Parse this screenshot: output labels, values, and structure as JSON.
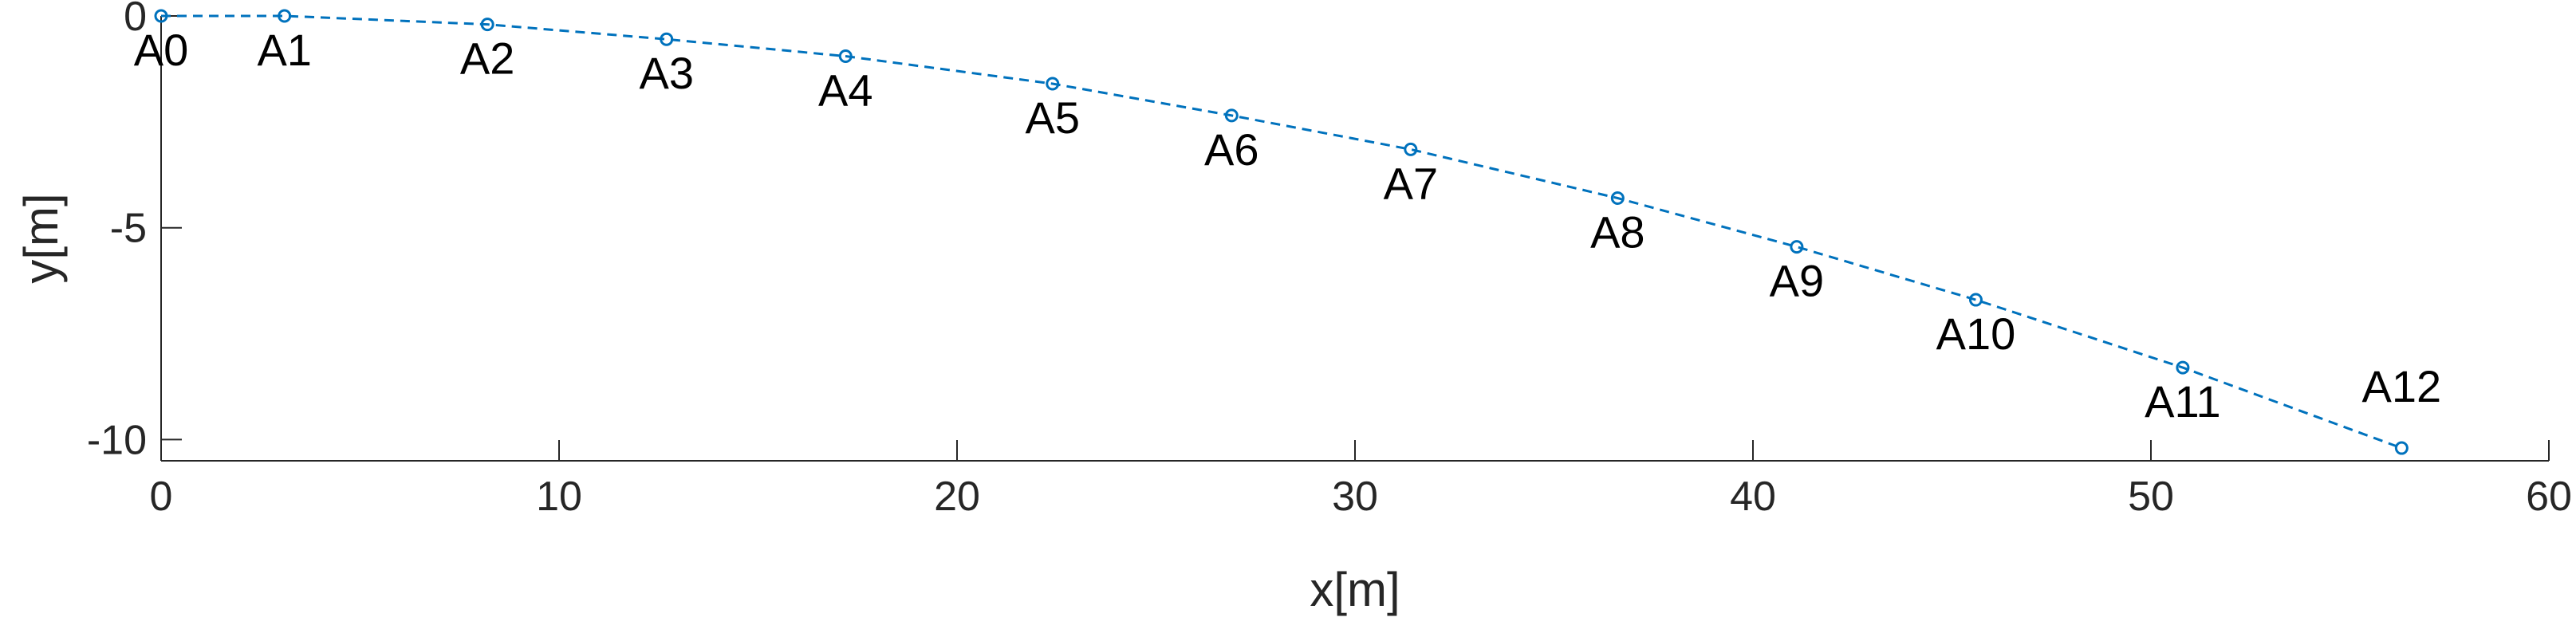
{
  "chart_data": {
    "type": "line",
    "title": "",
    "xlabel": "x[m]",
    "ylabel": "y[m]",
    "xlim": [
      0,
      60
    ],
    "ylim": [
      -10.5,
      0
    ],
    "xticks": [
      0,
      10,
      20,
      30,
      40,
      50,
      60
    ],
    "yticks": [
      0,
      -5,
      -10
    ],
    "grid": false,
    "line_style": "dashed",
    "marker": "circle",
    "series_color": "#0072BD",
    "points": [
      {
        "label": "A0",
        "x": 0.0,
        "y": 0.0
      },
      {
        "label": "A1",
        "x": 3.1,
        "y": 0.0
      },
      {
        "label": "A2",
        "x": 8.2,
        "y": -0.2
      },
      {
        "label": "A3",
        "x": 12.7,
        "y": -0.55
      },
      {
        "label": "A4",
        "x": 17.2,
        "y": -0.95
      },
      {
        "label": "A5",
        "x": 22.4,
        "y": -1.6
      },
      {
        "label": "A6",
        "x": 26.9,
        "y": -2.35
      },
      {
        "label": "A7",
        "x": 31.4,
        "y": -3.15
      },
      {
        "label": "A8",
        "x": 36.6,
        "y": -4.3
      },
      {
        "label": "A9",
        "x": 41.1,
        "y": -5.45
      },
      {
        "label": "A10",
        "x": 45.6,
        "y": -6.7
      },
      {
        "label": "A11",
        "x": 50.8,
        "y": -8.3
      },
      {
        "label": "A12",
        "x": 56.3,
        "y": -10.2
      }
    ]
  }
}
